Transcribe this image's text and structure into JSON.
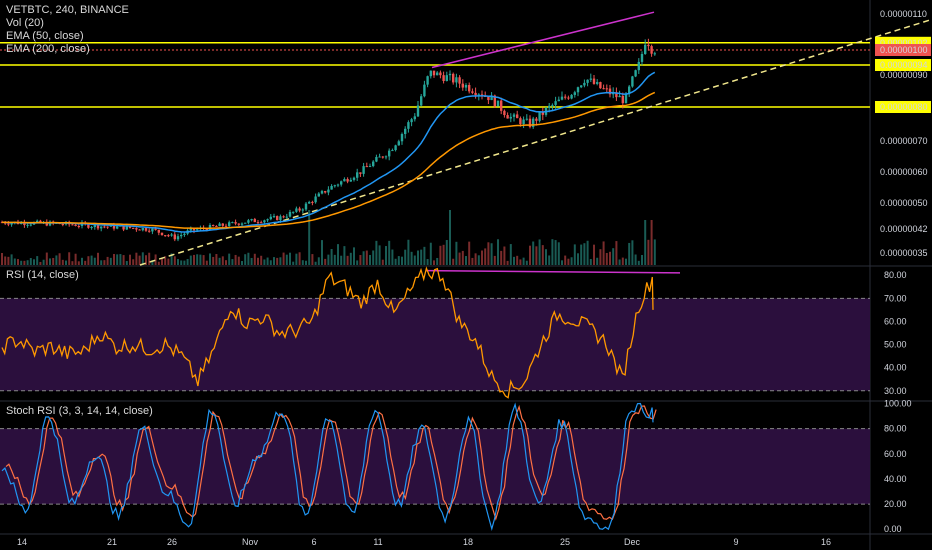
{
  "header": {
    "symbol_line": "VETBTC, 240, BINANCE",
    "indicators": [
      "Vol (20)",
      "EMA (50, close)",
      "EMA (200, close)"
    ]
  },
  "rsi_pane": {
    "label": "RSI (14, close)"
  },
  "stoch_pane": {
    "label": "Stoch RSI (3, 3, 14, 14, close)"
  },
  "colors": {
    "background": "#000000",
    "up_candle": "#26a69a",
    "down_candle": "#ef5350",
    "ema50": "#2196f3",
    "ema200": "#ff9800",
    "horizontal_lines": "#ffff00",
    "trendline_magenta": "#cc33cc",
    "rsi_line": "#ff9800",
    "stoch_k": "#2196f3",
    "stoch_d": "#ff7043",
    "pane_band": "#2b0f3d"
  },
  "chart_data": [
    {
      "type": "candlestick",
      "title": "VETBTC, 240, BINANCE",
      "price_axis_ticks": [
        "0.00000110",
        "0.00000100",
        "0.00000090",
        "0.00000080",
        "0.00000070",
        "0.00000060",
        "0.00000050",
        "0.00000042",
        "0.00000035"
      ],
      "price_labels": [
        {
          "text": "0.00000102",
          "value": 1.02e-06,
          "style": "yellow"
        },
        {
          "text": "0.00000100",
          "value": 1e-06,
          "style": "red"
        },
        {
          "text": "0.00000094",
          "value": 9.4e-07,
          "style": "yellow"
        },
        {
          "text": "0.00000080",
          "value": 8e-07,
          "style": "yellow"
        }
      ],
      "x_ticks": [
        "14",
        "21",
        "26",
        "Nov",
        "6",
        "11",
        "18",
        "25",
        "Dec",
        "9",
        "16"
      ],
      "horizontal_levels": [
        1.02e-06,
        1e-06,
        9.4e-07,
        8e-07
      ],
      "close_series_approx": [
        {
          "x": "Oct 14",
          "y": 4.41e-07
        },
        {
          "x": "Oct 21",
          "y": 4.38e-07
        },
        {
          "x": "Oct 26",
          "y": 4.05e-07
        },
        {
          "x": "Nov 1",
          "y": 4.55e-07
        },
        {
          "x": "Nov 6",
          "y": 5.5e-07
        },
        {
          "x": "Nov 11",
          "y": 7.1e-07
        },
        {
          "x": "Nov 15",
          "y": 9.1e-07
        },
        {
          "x": "Nov 18",
          "y": 8.6e-07
        },
        {
          "x": "Nov 21",
          "y": 7.7e-07
        },
        {
          "x": "Nov 25",
          "y": 8.8e-07
        },
        {
          "x": "Nov 29",
          "y": 8.3e-07
        },
        {
          "x": "Dec 1",
          "y": 1.04e-06
        }
      ]
    },
    {
      "type": "line",
      "title": "RSI (14, close)",
      "y_ticks": [
        "80.00",
        "70.00",
        "60.00",
        "50.00",
        "40.00",
        "30.00"
      ],
      "bands": [
        30,
        70
      ],
      "series": [
        {
          "values": [
            49,
            52,
            47,
            49,
            46,
            47,
            55,
            49,
            50,
            48,
            50,
            45,
            34,
            48,
            67,
            59,
            62,
            55,
            56,
            60,
            79,
            75,
            68,
            77,
            63,
            73,
            82,
            80,
            60,
            52,
            36,
            30,
            34,
            50,
            63,
            61,
            57,
            51,
            35,
            67,
            81
          ]
        }
      ]
    },
    {
      "type": "line",
      "title": "Stoch RSI (3, 3, 14, 14, close)",
      "y_ticks": [
        "100.00",
        "80.00",
        "60.00",
        "40.00",
        "20.00",
        "0.00"
      ],
      "bands": [
        20,
        80
      ],
      "series": [
        {
          "values": [
            50,
            15,
            90,
            20,
            60,
            10,
            80,
            30,
            5,
            95,
            20,
            60,
            95,
            10,
            90,
            10,
            95,
            20,
            80,
            10,
            85,
            5,
            95,
            20,
            85,
            10,
            0,
            98,
            92
          ]
        }
      ]
    }
  ]
}
